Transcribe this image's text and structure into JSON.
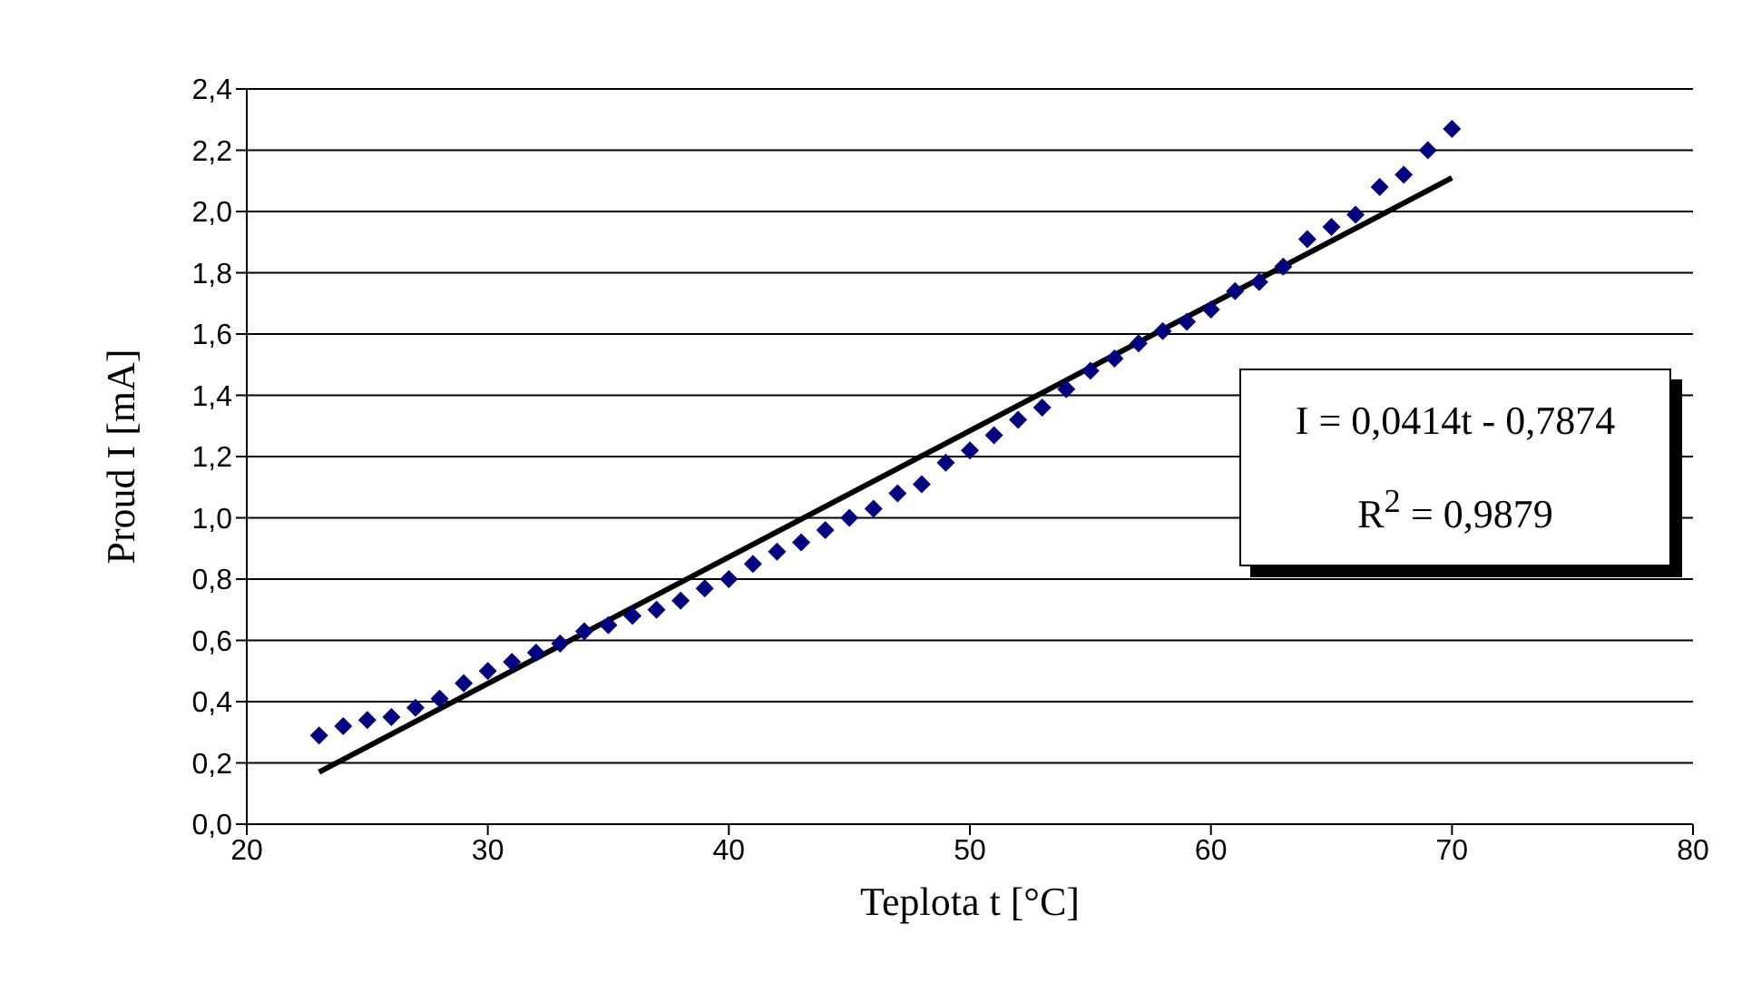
{
  "chart_data": {
    "type": "scatter",
    "xlabel": "Teplota t [°C]",
    "ylabel": "Proud I [mA]",
    "xlim": [
      20,
      80
    ],
    "xticks": [
      20,
      30,
      40,
      50,
      60,
      70,
      80
    ],
    "ylim": [
      0,
      2.4
    ],
    "yticks": [
      {
        "value": 0,
        "label": "0,0"
      },
      {
        "value": 0.2,
        "label": "0,2"
      },
      {
        "value": 0.4,
        "label": "0,4"
      },
      {
        "value": 0.6,
        "label": "0,6"
      },
      {
        "value": 0.8,
        "label": "0,8"
      },
      {
        "value": 1,
        "label": "1,0"
      },
      {
        "value": 1.2,
        "label": "1,2"
      },
      {
        "value": 1.4,
        "label": "1,4"
      },
      {
        "value": 1.6,
        "label": "1,6"
      },
      {
        "value": 1.8,
        "label": "1,8"
      },
      {
        "value": 2,
        "label": "2,0"
      },
      {
        "value": 2.2,
        "label": "2,2"
      },
      {
        "value": 2.4,
        "label": "2,4"
      }
    ],
    "grid": "y",
    "x": [
      23,
      24,
      25,
      26,
      27,
      28,
      29,
      30,
      31,
      32,
      33,
      34,
      35,
      36,
      37,
      38,
      39,
      40,
      41,
      42,
      43,
      44,
      45,
      46,
      47,
      48,
      49,
      50,
      51,
      52,
      53,
      54,
      55,
      56,
      57,
      58,
      59,
      60,
      61,
      62,
      63,
      64,
      65,
      66,
      67,
      68,
      69,
      70
    ],
    "series": [
      {
        "marker": "diamond",
        "color": "#000080",
        "values": [
          0.29,
          0.32,
          0.34,
          0.35,
          0.38,
          0.41,
          0.46,
          0.5,
          0.53,
          0.56,
          0.59,
          0.63,
          0.65,
          0.68,
          0.7,
          0.73,
          0.77,
          0.8,
          0.85,
          0.89,
          0.92,
          0.96,
          1.0,
          1.03,
          1.08,
          1.11,
          1.18,
          1.22,
          1.27,
          1.32,
          1.36,
          1.42,
          1.48,
          1.52,
          1.57,
          1.61,
          1.64,
          1.68,
          1.74,
          1.77,
          1.82,
          1.91,
          1.95,
          1.99,
          2.08,
          2.12,
          2.2,
          2.27
        ]
      },
      {
        "type": "line",
        "marker": "none",
        "color": "#000000",
        "x": [
          23,
          70
        ],
        "values": [
          0.17,
          2.11
        ]
      }
    ],
    "annotations": [
      "I = 0,0414t - 0,7874",
      "R$^{2}$ = 0,9879"
    ]
  }
}
